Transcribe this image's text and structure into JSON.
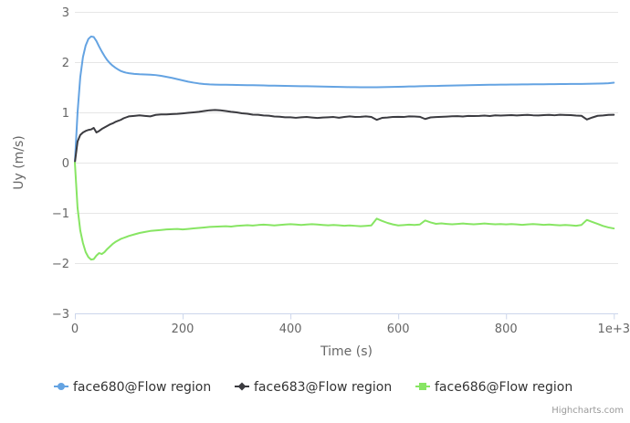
{
  "chart_data": {
    "type": "line",
    "title": "",
    "xlabel": "Time (s)",
    "ylabel": "Uy (m/s)",
    "xlim": [
      0,
      1008
    ],
    "ylim": [
      -3,
      3
    ],
    "grid": "horizontal-only",
    "legend_position": "bottom-center",
    "credits": "Highcharts.com",
    "x_ticks": [
      {
        "v": 0,
        "label": "0"
      },
      {
        "v": 200,
        "label": "200"
      },
      {
        "v": 400,
        "label": "400"
      },
      {
        "v": 600,
        "label": "600"
      },
      {
        "v": 800,
        "label": "800"
      },
      {
        "v": 1000,
        "label": "1e+3"
      }
    ],
    "y_ticks": [
      {
        "v": -3,
        "label": "−3"
      },
      {
        "v": -2,
        "label": "−2"
      },
      {
        "v": -1,
        "label": "−1"
      },
      {
        "v": 0,
        "label": "0"
      },
      {
        "v": 1,
        "label": "1"
      },
      {
        "v": 2,
        "label": "2"
      },
      {
        "v": 3,
        "label": "3"
      }
    ],
    "x": [
      0,
      5,
      10,
      15,
      20,
      25,
      30,
      35,
      40,
      45,
      50,
      55,
      60,
      65,
      70,
      75,
      80,
      85,
      90,
      95,
      100,
      110,
      120,
      130,
      140,
      150,
      160,
      170,
      180,
      190,
      200,
      210,
      220,
      230,
      240,
      250,
      260,
      270,
      280,
      290,
      300,
      310,
      320,
      330,
      340,
      350,
      360,
      370,
      380,
      390,
      400,
      410,
      420,
      430,
      440,
      450,
      460,
      470,
      480,
      490,
      500,
      510,
      520,
      530,
      540,
      550,
      560,
      570,
      580,
      590,
      600,
      610,
      620,
      630,
      640,
      650,
      660,
      670,
      680,
      690,
      700,
      710,
      720,
      730,
      740,
      750,
      760,
      770,
      780,
      790,
      800,
      810,
      820,
      830,
      840,
      850,
      860,
      870,
      880,
      890,
      900,
      910,
      920,
      930,
      940,
      950,
      960,
      970,
      980,
      990,
      1000
    ],
    "series": [
      {
        "name": "face680@Flow region",
        "color": "#64a3e2",
        "marker": "circle",
        "values": [
          0,
          1.0,
          1.7,
          2.1,
          2.33,
          2.46,
          2.51,
          2.5,
          2.42,
          2.31,
          2.21,
          2.12,
          2.04,
          1.98,
          1.93,
          1.89,
          1.855,
          1.825,
          1.805,
          1.79,
          1.78,
          1.765,
          1.758,
          1.754,
          1.75,
          1.742,
          1.727,
          1.707,
          1.686,
          1.662,
          1.637,
          1.612,
          1.592,
          1.576,
          1.563,
          1.556,
          1.552,
          1.55,
          1.549,
          1.547,
          1.546,
          1.544,
          1.542,
          1.54,
          1.538,
          1.536,
          1.533,
          1.531,
          1.529,
          1.527,
          1.525,
          1.523,
          1.521,
          1.52,
          1.518,
          1.516,
          1.513,
          1.511,
          1.509,
          1.507,
          1.505,
          1.503,
          1.502,
          1.501,
          1.5,
          1.5,
          1.501,
          1.503,
          1.505,
          1.507,
          1.51,
          1.512,
          1.515,
          1.517,
          1.52,
          1.522,
          1.524,
          1.526,
          1.529,
          1.531,
          1.534,
          1.536,
          1.539,
          1.541,
          1.543,
          1.545,
          1.547,
          1.549,
          1.55,
          1.552,
          1.553,
          1.554,
          1.555,
          1.556,
          1.557,
          1.558,
          1.559,
          1.56,
          1.561,
          1.562,
          1.563,
          1.564,
          1.565,
          1.566,
          1.567,
          1.568,
          1.57,
          1.572,
          1.575,
          1.58,
          1.59
        ]
      },
      {
        "name": "face683@Flow region",
        "color": "#3b3b40",
        "marker": "diamond",
        "values": [
          0,
          0.42,
          0.55,
          0.6,
          0.63,
          0.65,
          0.66,
          0.69,
          0.6,
          0.63,
          0.67,
          0.7,
          0.73,
          0.76,
          0.78,
          0.81,
          0.83,
          0.85,
          0.88,
          0.9,
          0.92,
          0.93,
          0.94,
          0.93,
          0.92,
          0.95,
          0.96,
          0.96,
          0.965,
          0.97,
          0.98,
          0.99,
          1.0,
          1.012,
          1.028,
          1.042,
          1.048,
          1.04,
          1.028,
          1.012,
          1.0,
          0.982,
          0.972,
          0.954,
          0.952,
          0.938,
          0.934,
          0.918,
          0.914,
          0.902,
          0.902,
          0.892,
          0.902,
          0.91,
          0.898,
          0.888,
          0.898,
          0.902,
          0.908,
          0.894,
          0.91,
          0.92,
          0.91,
          0.912,
          0.92,
          0.91,
          0.852,
          0.89,
          0.898,
          0.91,
          0.912,
          0.908,
          0.92,
          0.918,
          0.912,
          0.868,
          0.9,
          0.906,
          0.912,
          0.916,
          0.922,
          0.926,
          0.918,
          0.93,
          0.928,
          0.93,
          0.936,
          0.928,
          0.94,
          0.936,
          0.942,
          0.946,
          0.938,
          0.946,
          0.95,
          0.942,
          0.938,
          0.946,
          0.95,
          0.942,
          0.952,
          0.948,
          0.946,
          0.936,
          0.932,
          0.858,
          0.898,
          0.932,
          0.938,
          0.95,
          0.952
        ]
      },
      {
        "name": "face686@Flow region",
        "color": "#87e563",
        "marker": "square",
        "values": [
          0,
          -0.9,
          -1.35,
          -1.6,
          -1.78,
          -1.88,
          -1.93,
          -1.92,
          -1.85,
          -1.8,
          -1.82,
          -1.78,
          -1.72,
          -1.67,
          -1.62,
          -1.58,
          -1.55,
          -1.52,
          -1.5,
          -1.48,
          -1.46,
          -1.43,
          -1.4,
          -1.38,
          -1.36,
          -1.35,
          -1.34,
          -1.33,
          -1.325,
          -1.32,
          -1.33,
          -1.32,
          -1.31,
          -1.3,
          -1.29,
          -1.28,
          -1.275,
          -1.27,
          -1.265,
          -1.272,
          -1.26,
          -1.252,
          -1.245,
          -1.252,
          -1.242,
          -1.235,
          -1.242,
          -1.25,
          -1.24,
          -1.232,
          -1.225,
          -1.232,
          -1.24,
          -1.232,
          -1.225,
          -1.232,
          -1.24,
          -1.248,
          -1.24,
          -1.248,
          -1.256,
          -1.25,
          -1.258,
          -1.265,
          -1.258,
          -1.25,
          -1.115,
          -1.16,
          -1.2,
          -1.23,
          -1.25,
          -1.243,
          -1.235,
          -1.24,
          -1.232,
          -1.152,
          -1.19,
          -1.218,
          -1.21,
          -1.22,
          -1.228,
          -1.22,
          -1.212,
          -1.22,
          -1.228,
          -1.22,
          -1.212,
          -1.22,
          -1.228,
          -1.222,
          -1.23,
          -1.222,
          -1.23,
          -1.238,
          -1.23,
          -1.222,
          -1.23,
          -1.238,
          -1.232,
          -1.24,
          -1.248,
          -1.24,
          -1.248,
          -1.256,
          -1.24,
          -1.14,
          -1.18,
          -1.22,
          -1.26,
          -1.29,
          -1.31
        ]
      }
    ]
  },
  "colors": {
    "background": "#ffffff",
    "grid": "#e6e6e6",
    "axis_line": "#ccd6eb",
    "tick_label": "#666666",
    "axis_title": "#666666",
    "legend_text": "#333333",
    "credits": "#999999"
  }
}
